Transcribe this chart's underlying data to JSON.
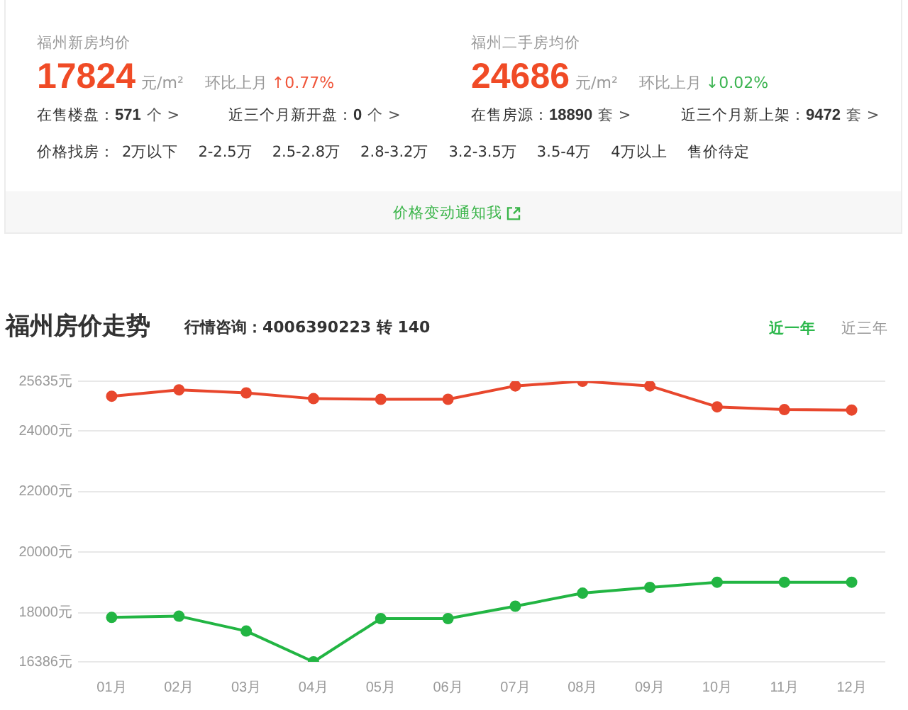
{
  "chart_data": [
    {
      "type": "other",
      "annotations": [
        "福州新房均价",
        "17824",
        "元/m²",
        "环比上月",
        "↑0.77%",
        "在售楼盘：",
        "571",
        "个 >",
        "近三个月新开盘：",
        "0",
        "个 >",
        "福州二手房均价",
        "24686",
        "元/m²",
        "环比上月",
        "↓0.02%",
        "在售房源：",
        "18890",
        "套 >",
        "近三个月新上架：",
        "9472",
        "套 >",
        "价格找房：",
        "2万以下",
        "2-2.5万",
        "2.5-2.8万",
        "2.8-3.2万",
        "3.2-3.5万",
        "3.5-4万",
        "4万以上",
        "售价待定",
        "价格变动通知我"
      ]
    },
    {
      "type": "line",
      "title": "福州房价走势",
      "subtitle": "行情咨询：4006390223 转 140",
      "annotations": [
        "近一年",
        "近三年"
      ],
      "categories": [
        "01月",
        "02月",
        "03月",
        "04月",
        "05月",
        "06月",
        "07月",
        "08月",
        "09月",
        "10月",
        "11月",
        "12月"
      ],
      "series": [
        {
          "color": "#e8472d",
          "values": [
            25140,
            25350,
            25250,
            25060,
            25040,
            25040,
            25480,
            25635,
            25480,
            24790,
            24700,
            24686
          ]
        },
        {
          "color": "#22b543",
          "values": [
            17850,
            17890,
            17400,
            16386,
            17810,
            17810,
            18220,
            18650,
            18840,
            19010,
            19010,
            19010
          ]
        }
      ],
      "ylim": [
        16386,
        25635
      ],
      "yticks": [
        {
          "value": 16386,
          "label": "16386元"
        },
        {
          "value": 18000,
          "label": "18000元"
        },
        {
          "value": 20000,
          "label": "20000元"
        },
        {
          "value": 22000,
          "label": "22000元"
        },
        {
          "value": 24000,
          "label": "24000元"
        },
        {
          "value": 25635,
          "label": "25635元"
        }
      ],
      "grid": "y",
      "legend": false,
      "marker": "circle",
      "line_style": "solid"
    }
  ]
}
